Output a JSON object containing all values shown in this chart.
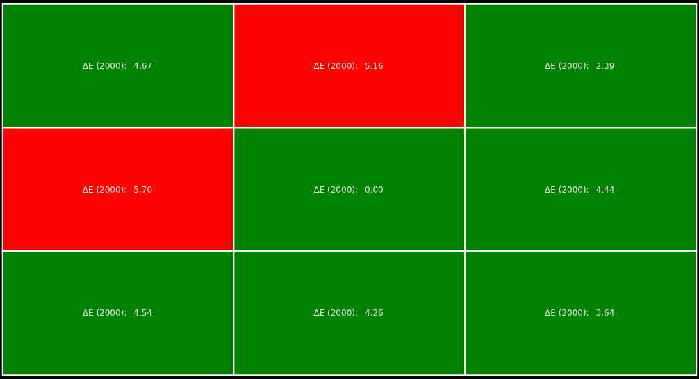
{
  "chart_data": {
    "type": "heatmap",
    "categories": [
      null,
      null,
      null
    ],
    "y_categories": [
      null,
      null,
      null
    ],
    "cells": [
      [
        4.67,
        5.16,
        2.39
      ],
      [
        5.7,
        0.0,
        4.44
      ],
      [
        4.54,
        4.26,
        3.64
      ]
    ],
    "cell_labels": [
      [
        "4.67",
        "5.16",
        "2.39"
      ],
      [
        "5.70",
        "0.00",
        "4.44"
      ],
      [
        "4.54",
        "4.26",
        "3.64"
      ]
    ],
    "annotations": [
      "ΔE (2000):"
    ],
    "colors": [
      [
        "#008000",
        "#ff0000",
        "#008000"
      ],
      [
        "#ff0000",
        "#008000",
        "#008000"
      ],
      [
        "#008000",
        "#008000",
        "#008000"
      ]
    ]
  }
}
